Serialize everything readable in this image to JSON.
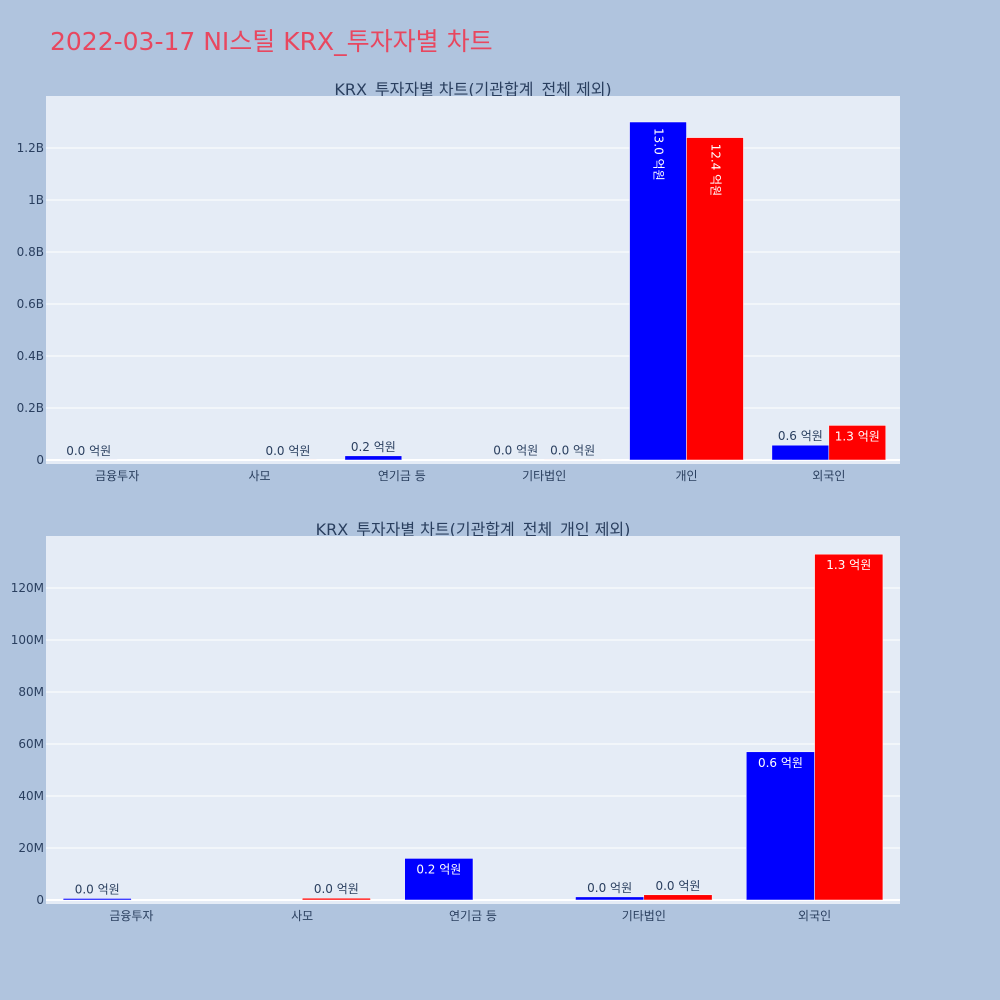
{
  "page": {
    "title": "2022-03-17 NI스틸 KRX_투자자별 차트"
  },
  "colors": {
    "page_bg": "#b0c4de",
    "plot_bg": "#e5ecf6",
    "grid": "#ffffff",
    "series_a": "#0000ff",
    "series_b": "#ff0000",
    "text": "#2a3f5f"
  },
  "chart_data": [
    {
      "type": "bar",
      "title": "KRX_투자자별 차트(기관합계_전체 제외)",
      "xlabel": "",
      "ylabel": "",
      "categories": [
        "금융투자",
        "사모",
        "연기금 등",
        "기타법인",
        "개인",
        "외국인"
      ],
      "ylim": [
        0,
        1400000000.0
      ],
      "yticks": [
        0,
        200000000.0,
        400000000.0,
        600000000.0,
        800000000.0,
        1000000000.0,
        1200000000.0
      ],
      "ytick_labels": [
        "0",
        "0.2B",
        "0.4B",
        "0.6B",
        "0.8B",
        "1B",
        "1.2B"
      ],
      "grid": true,
      "series": [
        {
          "values": [
            600000,
            0,
            16000000,
            1200000,
            1300000000,
            57000000
          ],
          "labels": [
            "0.0 억원",
            "",
            "0.2 억원",
            "0.0 억원",
            "13.0 억원",
            "0.6 억원"
          ]
        },
        {
          "values": [
            0,
            700000,
            0,
            2000000,
            1240000000,
            133000000
          ],
          "labels": [
            "",
            "0.0 억원",
            "",
            "0.0 억원",
            "12.4 억원",
            "1.3 억원"
          ]
        }
      ]
    },
    {
      "type": "bar",
      "title": "KRX_투자자별 차트(기관합계_전체_개인 제외)",
      "xlabel": "",
      "ylabel": "",
      "categories": [
        "금융투자",
        "사모",
        "연기금 등",
        "기타법인",
        "외국인"
      ],
      "ylim": [
        0,
        140000000
      ],
      "yticks": [
        0,
        20000000,
        40000000,
        60000000,
        80000000,
        100000000,
        120000000
      ],
      "ytick_labels": [
        "0",
        "20M",
        "40M",
        "60M",
        "80M",
        "100M",
        "120M"
      ],
      "grid": true,
      "series": [
        {
          "values": [
            600000,
            0,
            16000000,
            1200000,
            57000000
          ],
          "labels": [
            "0.0 억원",
            "",
            "0.2 억원",
            "0.0 억원",
            "0.6 억원"
          ]
        },
        {
          "values": [
            0,
            700000,
            0,
            2000000,
            133000000
          ],
          "labels": [
            "",
            "0.0 억원",
            "",
            "0.0 억원",
            "1.3 억원"
          ]
        }
      ]
    }
  ]
}
